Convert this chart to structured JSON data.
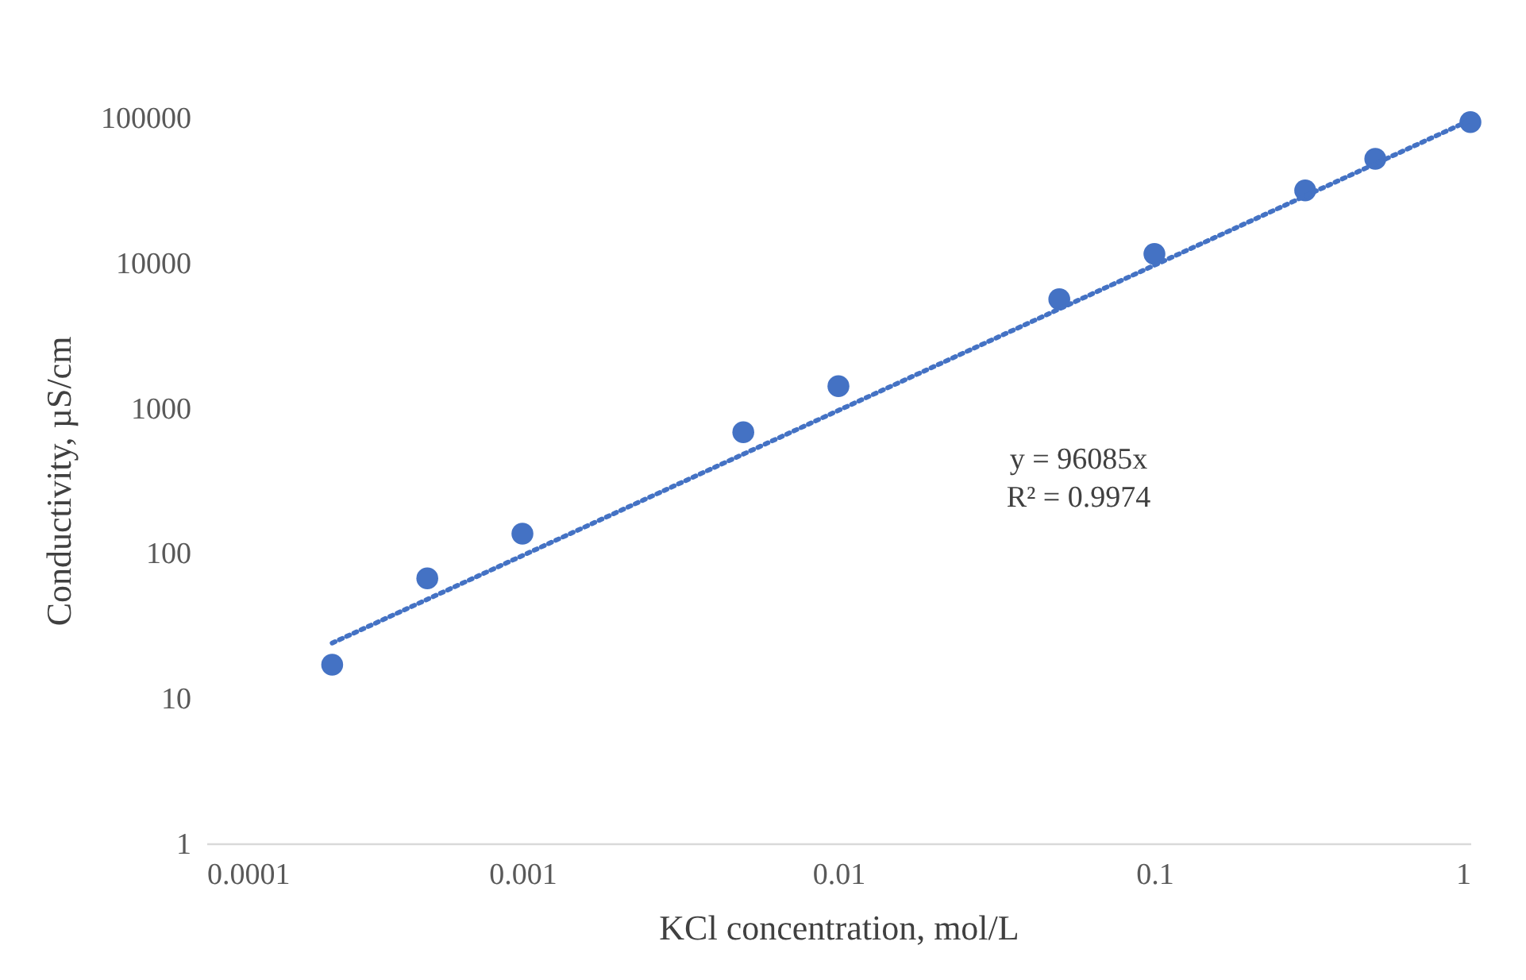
{
  "chart_data": {
    "type": "scatter",
    "xlabel": "KCl concentration, mol/L",
    "ylabel": "Conductivity, µS/cm",
    "log": "xy",
    "grid": false,
    "xlim": [
      0.0001,
      1
    ],
    "xticks": [
      0.0001,
      0.001,
      0.01,
      0.1,
      1
    ],
    "ylim": [
      1,
      100000
    ],
    "yticks": [
      1,
      10,
      100,
      1000,
      10000,
      100000
    ],
    "series": [
      {
        "marker": "circle",
        "color": "#4472c4",
        "x": [
          0.00025,
          0.0005,
          0.001,
          0.005,
          0.01,
          0.05,
          0.1,
          0.3,
          0.5,
          1
        ],
        "values": [
          17,
          67,
          136,
          680,
          1410,
          5600,
          11500,
          31500,
          52000,
          93000
        ]
      },
      {
        "type": "line",
        "color": "#4472c4",
        "line_style": "dotted",
        "x": [
          0.00025,
          1
        ],
        "values": [
          24,
          96085
        ]
      }
    ],
    "annotations": [
      "y = 96085x",
      "R² = 0.9974"
    ]
  }
}
